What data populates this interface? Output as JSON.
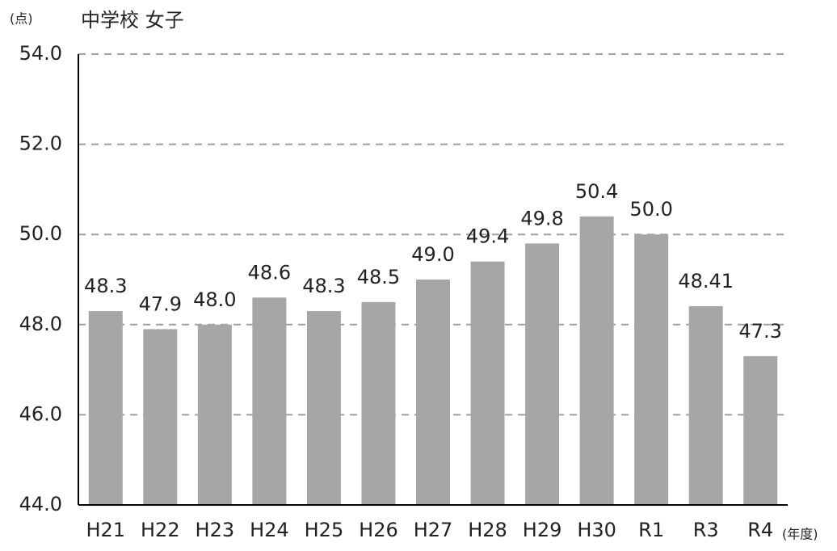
{
  "chart_data": {
    "type": "bar",
    "title": "中学校 女子",
    "y_unit_label": "(点)",
    "x_unit_label": "(年度)",
    "categories": [
      "H21",
      "H22",
      "H23",
      "H24",
      "H25",
      "H26",
      "H27",
      "H28",
      "H29",
      "H30",
      "R1",
      "R3",
      "R4"
    ],
    "values": [
      48.3,
      47.9,
      48,
      48.6,
      48.3,
      48.5,
      49,
      49.4,
      49.8,
      50.4,
      50,
      48.41,
      47.3
    ],
    "value_labels": [
      "48.3",
      "47.9",
      "48.0",
      "48.6",
      "48.3",
      "48.5",
      "49.0",
      "49.4",
      "49.8",
      "50.4",
      "50.0",
      "48.41",
      "47.3"
    ],
    "color": "#a6a6a6",
    "ylim": [
      44,
      54
    ],
    "yticks": [
      {
        "value": 44,
        "label": "44.0"
      },
      {
        "value": 46,
        "label": "46.0"
      },
      {
        "value": 48,
        "label": "48.0"
      },
      {
        "value": 50,
        "label": "50.0"
      },
      {
        "value": 52,
        "label": "52.0"
      },
      {
        "value": 54,
        "label": "54.0"
      }
    ],
    "grid": true
  }
}
